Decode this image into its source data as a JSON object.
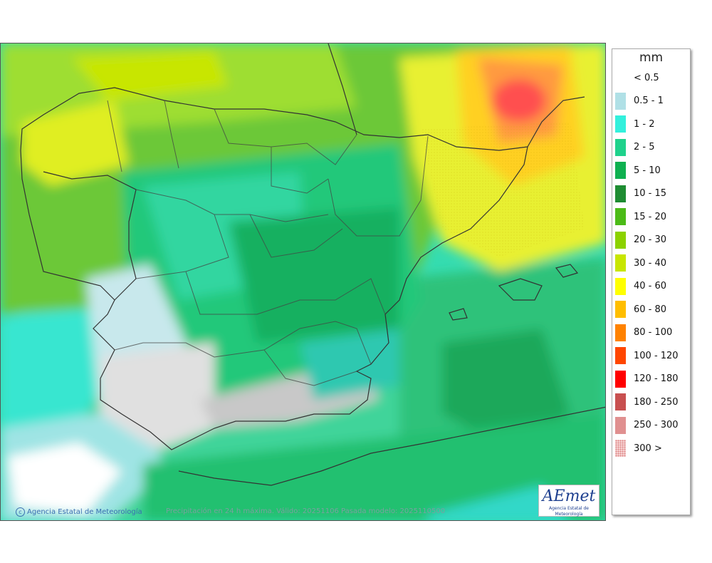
{
  "legend": {
    "unit": "mm",
    "entries": [
      {
        "label": "< 0.5",
        "color": "#ffffff"
      },
      {
        "label": "0.5 - 1",
        "color": "#b0e0e6"
      },
      {
        "label": "1 - 2",
        "color": "#33f0dc"
      },
      {
        "label": "2 - 5",
        "color": "#1fd28c"
      },
      {
        "label": "5 - 10",
        "color": "#0fb050"
      },
      {
        "label": "10 - 15",
        "color": "#1e8c32"
      },
      {
        "label": "15 - 20",
        "color": "#4cbb17"
      },
      {
        "label": "20 - 30",
        "color": "#8cd200"
      },
      {
        "label": "30 - 40",
        "color": "#c8e600"
      },
      {
        "label": "40 - 60",
        "color": "#ffff00"
      },
      {
        "label": "60 - 80",
        "color": "#ffbe00"
      },
      {
        "label": "80 - 100",
        "color": "#ff8200"
      },
      {
        "label": "100 - 120",
        "color": "#ff4600"
      },
      {
        "label": "120 - 180",
        "color": "#ff0000"
      },
      {
        "label": "180 - 250",
        "color": "#c85050"
      },
      {
        "label": "250 - 300",
        "color": "#e09090"
      },
      {
        "label": "300 >",
        "color": "#f6d2d2"
      }
    ]
  },
  "credit": "Agencia Estatal de Meteorología",
  "caption": "Precipitación en 24 h máxima. Válido: 20251106 Pasada modelo: 2025110500",
  "logo": {
    "brand": "AEmet",
    "subtitle": "Agencia Estatal de Meteorología"
  },
  "icons": {
    "credit_icon": "copyright-icon"
  }
}
